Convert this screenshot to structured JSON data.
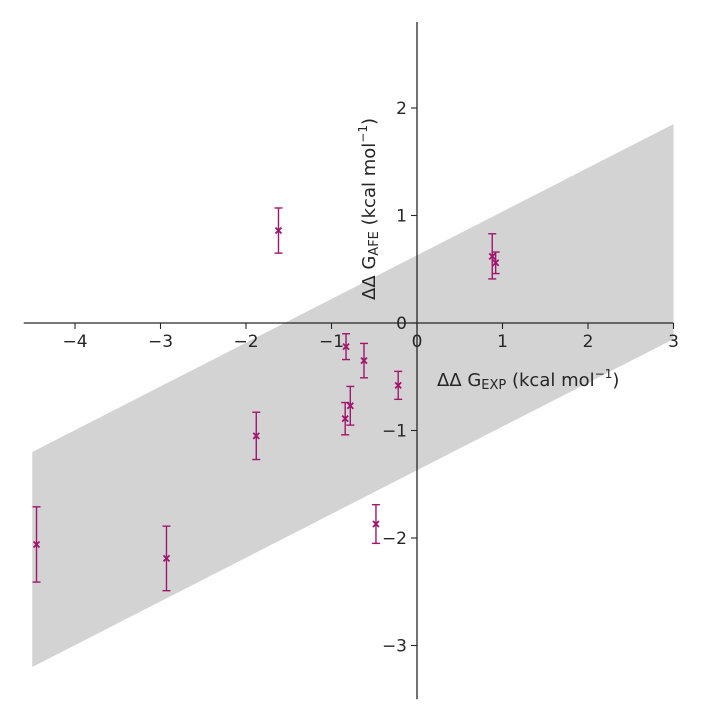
{
  "chart_data": {
    "type": "scatter",
    "title": "",
    "xlabel": {
      "prefix": "ΔΔ G",
      "subscript": "EXP",
      "suffix": " (kcal mol",
      "superscript": "−1",
      "close": ")"
    },
    "ylabel": {
      "prefix": "ΔΔ G",
      "subscript": "AFE",
      "suffix": " (kcal mol",
      "superscript": "−1",
      "close": ")"
    },
    "xlim": [
      -4.6,
      3.0
    ],
    "ylim": [
      -3.5,
      2.8
    ],
    "xticks": [
      {
        "value": -4,
        "label": "−4"
      },
      {
        "value": -3,
        "label": "−3"
      },
      {
        "value": -2,
        "label": "−2"
      },
      {
        "value": -1,
        "label": "−1"
      },
      {
        "value": 0,
        "label": "0"
      },
      {
        "value": 1,
        "label": "1"
      },
      {
        "value": 2,
        "label": "2"
      },
      {
        "value": 3,
        "label": "3"
      }
    ],
    "yticks": [
      {
        "value": -3,
        "label": "−3"
      },
      {
        "value": -2,
        "label": "−2"
      },
      {
        "value": -1,
        "label": "−1"
      },
      {
        "value": 0,
        "label": "0"
      },
      {
        "value": 1,
        "label": "1"
      },
      {
        "value": 2,
        "label": "2"
      }
    ],
    "band": {
      "x": [
        -4.5,
        3.0
      ],
      "lower": [
        -3.2,
        -0.15
      ],
      "upper": [
        -1.2,
        1.85
      ],
      "color": "#d3d3d3"
    },
    "series": [
      {
        "marker": "x",
        "color": "#a0166e",
        "points": [
          {
            "x": -4.45,
            "y": -2.06,
            "err": 0.35
          },
          {
            "x": -2.93,
            "y": -2.19,
            "err": 0.3
          },
          {
            "x": -1.88,
            "y": -1.05,
            "err": 0.22
          },
          {
            "x": -1.62,
            "y": 0.86,
            "err": 0.21
          },
          {
            "x": -0.83,
            "y": -0.22,
            "err": 0.12
          },
          {
            "x": -0.84,
            "y": -0.89,
            "err": 0.15
          },
          {
            "x": -0.78,
            "y": -0.77,
            "err": 0.18
          },
          {
            "x": -0.62,
            "y": -0.35,
            "err": 0.16
          },
          {
            "x": -0.48,
            "y": -1.87,
            "err": 0.18
          },
          {
            "x": -0.22,
            "y": -0.58,
            "err": 0.13
          },
          {
            "x": 0.88,
            "y": 0.62,
            "err": 0.21
          },
          {
            "x": 0.92,
            "y": 0.56,
            "err": 0.1
          }
        ]
      }
    ]
  }
}
